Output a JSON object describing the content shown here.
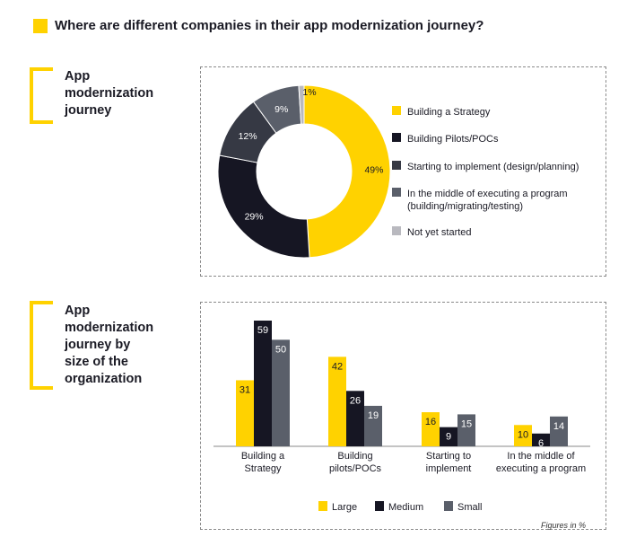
{
  "header": {
    "title": "Where are different companies in their app modernization journey?"
  },
  "sections": [
    {
      "title_lines": [
        "App",
        "modernization",
        "journey"
      ]
    },
    {
      "title_lines": [
        "App",
        "modernization",
        "journey by",
        "size of the",
        "organization"
      ]
    }
  ],
  "footnote": "Figures in %",
  "colors": {
    "yellow": "#ffd200",
    "dark_navy": "#161623",
    "dark_gray": "#363944",
    "slate": "#5a5f6a",
    "light_gray": "#b9b9bf"
  },
  "chart_data": [
    {
      "type": "pie",
      "title": "",
      "labels": [
        "Building a Strategy",
        "Building Pilots/POCs",
        "Starting to implement (design/planning)",
        "In the middle of executing a program (building/migrating/testing)",
        "Not yet started"
      ],
      "legend_lines": [
        [
          "Building a Strategy"
        ],
        [
          "Building Pilots/POCs"
        ],
        [
          "Starting to implement (design/planning)"
        ],
        [
          "In the middle of executing a program",
          "(building/migrating/testing)"
        ],
        [
          "Not yet started"
        ]
      ],
      "values": [
        49,
        29,
        12,
        9,
        1
      ],
      "value_labels": [
        "49%",
        "29%",
        "12%",
        "9%",
        "1%"
      ],
      "colors": [
        "#ffd200",
        "#161623",
        "#363944",
        "#5a5f6a",
        "#b9b9bf"
      ],
      "donut": true,
      "legend_position": "right"
    },
    {
      "type": "bar",
      "title": "",
      "xlabel": "",
      "ylabel": "",
      "categories": [
        "Building a Strategy",
        "Building pilots/POCs",
        "Starting to implement",
        "In the middle of executing a program"
      ],
      "category_lines": [
        [
          "Building a",
          "Strategy"
        ],
        [
          "Building",
          "pilots/POCs"
        ],
        [
          "Starting to",
          "implement"
        ],
        [
          "In the middle of",
          "executing a program"
        ]
      ],
      "series": [
        {
          "name": "Large",
          "values": [
            31,
            42,
            16,
            10
          ],
          "color": "#ffd200"
        },
        {
          "name": "Medium",
          "values": [
            59,
            26,
            9,
            6
          ],
          "color": "#161623"
        },
        {
          "name": "Small",
          "values": [
            50,
            19,
            15,
            14
          ],
          "color": "#5a5f6a"
        }
      ],
      "ylim": [
        0,
        59
      ],
      "legend_position": "bottom",
      "grid": false
    }
  ]
}
